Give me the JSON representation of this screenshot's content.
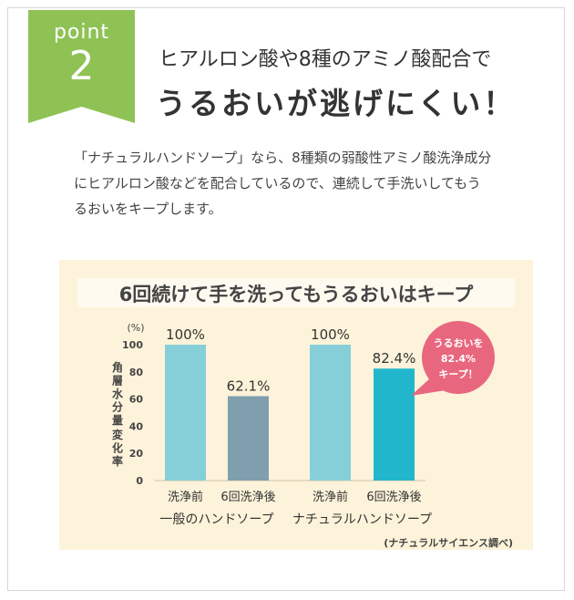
{
  "badge": {
    "word": "point",
    "number": "2",
    "color": "#8fc255"
  },
  "heading": {
    "line1": "ヒアルロン酸や8種のアミノ酸配合で",
    "line2": "うるおいが逃げにくい！"
  },
  "paragraph": [
    "「ナチュラルハンドソープ」なら、8種類の弱酸性アミノ酸洗浄成分",
    "にヒアルロン酸などを配合しているので、連続して手洗いしてもう",
    "るおいをキープします。"
  ],
  "chart_data": {
    "type": "bar",
    "title": "6回続けて手を洗ってもうるおいはキープ",
    "ylabel": "角層水分量 変化率",
    "yunit": "(%)",
    "ylim": [
      0,
      100
    ],
    "yticks": [
      0,
      20,
      40,
      60,
      80,
      100
    ],
    "groups": [
      {
        "name": "一般のハンドソープ",
        "bars": [
          {
            "label": "洗浄前",
            "value": 100,
            "display": "100%",
            "color": "#87cfd8"
          },
          {
            "label": "6回洗浄後",
            "value": 62.1,
            "display": "62.1%",
            "color": "#7f9fae"
          }
        ]
      },
      {
        "name": "ナチュラルハンドソープ",
        "bars": [
          {
            "label": "洗浄前",
            "value": 100,
            "display": "100%",
            "color": "#87cfd8"
          },
          {
            "label": "6回洗浄後",
            "value": 82.4,
            "display": "82.4%",
            "color": "#22b6cc"
          }
        ]
      }
    ],
    "callout": {
      "lines": [
        "うるおいを",
        "82.4%",
        "キープ！"
      ],
      "color": "#e8677e"
    },
    "source": "(ナチュラルサイエンス調べ)"
  }
}
